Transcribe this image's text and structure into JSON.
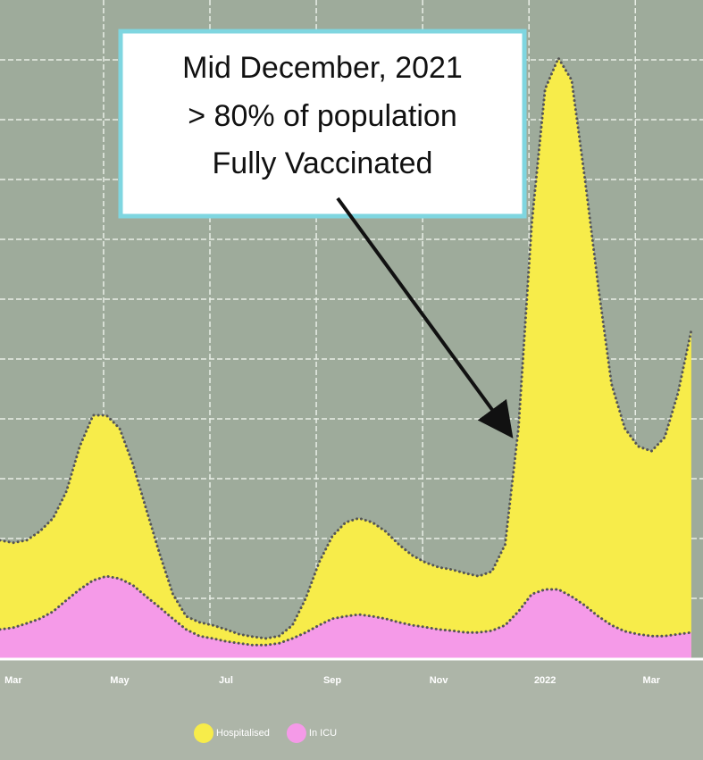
{
  "chart_data": {
    "type": "area",
    "stacked": false,
    "annotation": [
      "Mid December, 2021",
      "> 80% of population",
      "Fully Vaccinated"
    ],
    "x": [
      -0.25,
      0,
      0.25,
      0.5,
      0.75,
      1,
      1.25,
      1.5,
      1.75,
      2,
      2.25,
      2.5,
      2.75,
      3,
      3.25,
      3.5,
      3.75,
      4,
      4.25,
      4.5,
      4.75,
      5,
      5.25,
      5.5,
      5.75,
      6,
      6.25,
      6.5,
      6.75,
      7,
      7.25,
      7.5,
      7.75,
      8,
      8.25,
      8.5,
      8.75,
      9,
      9.25,
      9.5,
      9.75,
      10,
      10.25,
      10.5,
      10.75,
      11,
      11.25,
      11.5,
      11.75,
      12,
      12.25,
      12.5,
      12.75
    ],
    "series": [
      {
        "name": "Hospitalised",
        "color": "#f7ec4a",
        "values": [
          1.97,
          1.93,
          1.97,
          2.12,
          2.34,
          2.79,
          3.54,
          4.06,
          4.06,
          3.84,
          3.24,
          2.49,
          1.75,
          1.07,
          0.7,
          0.6,
          0.55,
          0.48,
          0.4,
          0.36,
          0.33,
          0.37,
          0.55,
          1.0,
          1.6,
          2.04,
          2.27,
          2.34,
          2.27,
          2.12,
          1.9,
          1.72,
          1.6,
          1.52,
          1.48,
          1.42,
          1.37,
          1.45,
          1.9,
          3.84,
          7.27,
          9.51,
          10.03,
          9.66,
          8.01,
          6.22,
          4.58,
          3.84,
          3.54,
          3.46,
          3.69,
          4.43,
          5.48
        ]
      },
      {
        "name": "In ICU",
        "color": "#f59ae8",
        "values": [
          0.48,
          0.51,
          0.58,
          0.66,
          0.78,
          0.97,
          1.15,
          1.3,
          1.37,
          1.33,
          1.22,
          1.03,
          0.85,
          0.66,
          0.48,
          0.37,
          0.33,
          0.28,
          0.25,
          0.22,
          0.22,
          0.25,
          0.33,
          0.43,
          0.55,
          0.66,
          0.7,
          0.73,
          0.7,
          0.66,
          0.6,
          0.55,
          0.52,
          0.48,
          0.46,
          0.43,
          0.43,
          0.46,
          0.55,
          0.78,
          1.07,
          1.15,
          1.15,
          1.03,
          0.88,
          0.7,
          0.55,
          0.45,
          0.4,
          0.37,
          0.37,
          0.4,
          0.43
        ]
      }
    ],
    "xlim": [
      -0.25,
      12.97
    ],
    "xticks": [
      {
        "value": 0,
        "label": "Mar"
      },
      {
        "value": 2,
        "label": "May"
      },
      {
        "value": 4,
        "label": "Jul"
      },
      {
        "value": 6,
        "label": "Sep"
      },
      {
        "value": 8,
        "label": "Nov"
      },
      {
        "value": 10,
        "label": "2022"
      },
      {
        "value": 12,
        "label": "Mar"
      }
    ],
    "ylim": [
      0,
      11
    ],
    "yticks": [
      1,
      2,
      3,
      4,
      5,
      6,
      7,
      8,
      9,
      10
    ],
    "grid": true,
    "legend": "bottom"
  }
}
